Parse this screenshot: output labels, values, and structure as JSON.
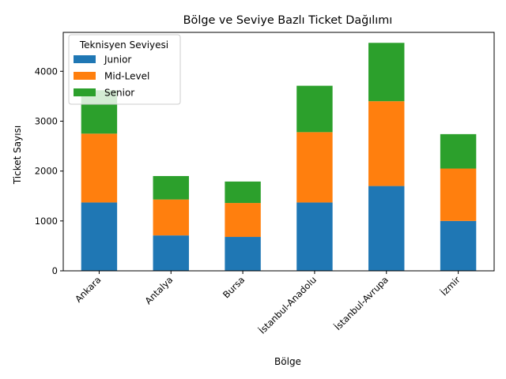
{
  "chart_data": {
    "type": "bar",
    "stacked": true,
    "title": "Bölge ve Seviye Bazlı Ticket Dağılımı",
    "xlabel": "Bölge",
    "ylabel": "Ticket Sayısı",
    "categories": [
      "Ankara",
      "Antalya",
      "Bursa",
      "İstanbul-Anadolu",
      "İstanbul-Avrupa",
      "İzmir"
    ],
    "series": [
      {
        "name": "Junior",
        "color": "#1f77b4",
        "values": [
          1370,
          710,
          680,
          1370,
          1700,
          1000
        ]
      },
      {
        "name": "Mid-Level",
        "color": "#ff7f0e",
        "values": [
          1380,
          720,
          680,
          1410,
          1700,
          1050
        ]
      },
      {
        "name": "Senior",
        "color": "#2ca02c",
        "values": [
          870,
          470,
          430,
          930,
          1170,
          690
        ]
      }
    ],
    "ylim": [
      0,
      4780
    ],
    "yticks": [
      0,
      1000,
      2000,
      3000,
      4000
    ],
    "grid": false,
    "legend": {
      "title": "Teknisyen Seviyesi",
      "placement": "top-left"
    }
  }
}
